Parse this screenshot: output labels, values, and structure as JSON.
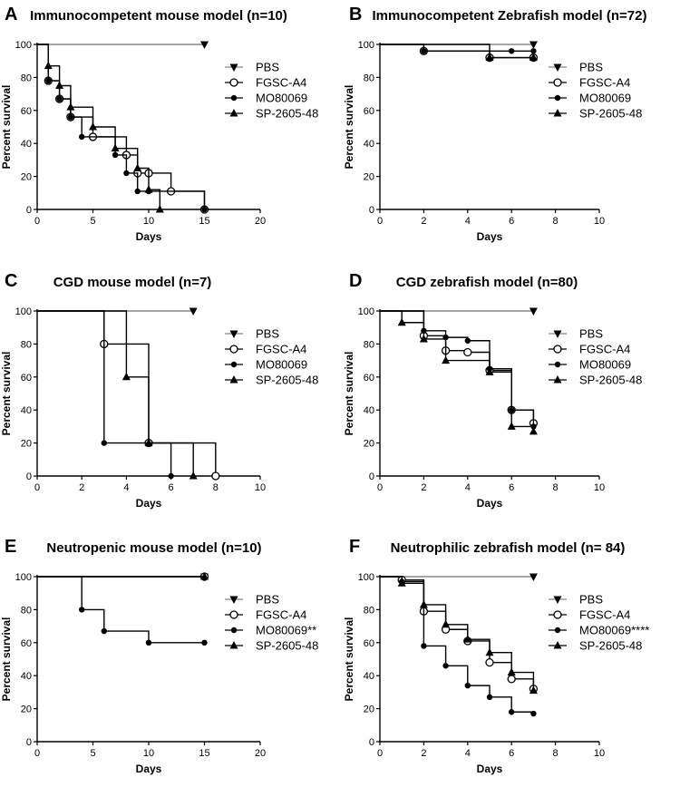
{
  "chart_data": [
    {
      "type": "line",
      "panel": "A",
      "title": "Immunocompetent mouse model (n=10)",
      "xlabel": "Days",
      "ylabel": "Percent survival",
      "xlim": [
        0,
        20
      ],
      "ylim": [
        0,
        100
      ],
      "xticks": [
        0,
        5,
        10,
        15,
        20
      ],
      "yticks": [
        0,
        20,
        40,
        60,
        80,
        100
      ],
      "legend": [
        "PBS",
        "FGSC-A4",
        "MO80069",
        "SP-2605-48"
      ],
      "series": [
        {
          "name": "PBS",
          "marker": "tri-down",
          "color": "#888888",
          "x": [
            0,
            15
          ],
          "y": [
            100,
            100
          ]
        },
        {
          "name": "FGSC-A4",
          "marker": "circle-open",
          "color": "#000000",
          "x": [
            0,
            1,
            2,
            3,
            5,
            8,
            9,
            10,
            12,
            15
          ],
          "y": [
            100,
            78,
            67,
            56,
            44,
            33,
            22,
            22,
            11,
            0
          ]
        },
        {
          "name": "MO80069",
          "marker": "circle",
          "color": "#000000",
          "x": [
            0,
            1,
            2,
            3,
            4,
            7,
            8,
            9,
            10,
            15
          ],
          "y": [
            100,
            78,
            67,
            56,
            44,
            33,
            22,
            11,
            11,
            0
          ]
        },
        {
          "name": "SP-2605-48",
          "marker": "tri-up",
          "color": "#000000",
          "x": [
            0,
            1,
            2,
            3,
            5,
            7,
            9,
            10,
            11
          ],
          "y": [
            100,
            87,
            75,
            62,
            50,
            37,
            25,
            12,
            0
          ]
        }
      ]
    },
    {
      "type": "line",
      "panel": "B",
      "title": "Immunocompetent Zebrafish model (n=72)",
      "xlabel": "Days",
      "ylabel": "Percent survival",
      "xlim": [
        0,
        10
      ],
      "ylim": [
        0,
        100
      ],
      "xticks": [
        0,
        2,
        4,
        6,
        8,
        10
      ],
      "yticks": [
        0,
        20,
        40,
        60,
        80,
        100
      ],
      "legend": [
        "PBS",
        "FGSC-A4",
        "MO80069",
        "SP-2605-48"
      ],
      "series": [
        {
          "name": "PBS",
          "marker": "tri-down",
          "color": "#888888",
          "x": [
            0,
            7
          ],
          "y": [
            100,
            100
          ]
        },
        {
          "name": "FGSC-A4",
          "marker": "circle-open",
          "color": "#000000",
          "x": [
            0,
            2,
            5,
            7
          ],
          "y": [
            100,
            96,
            92,
            92
          ]
        },
        {
          "name": "MO80069",
          "marker": "circle",
          "color": "#000000",
          "x": [
            0,
            2,
            6,
            7
          ],
          "y": [
            100,
            96,
            96,
            96
          ]
        },
        {
          "name": "SP-2605-48",
          "marker": "tri-up",
          "color": "#000000",
          "x": [
            0,
            5,
            7
          ],
          "y": [
            100,
            92,
            92
          ]
        }
      ]
    },
    {
      "type": "line",
      "panel": "C",
      "title": "CGD mouse model (n=7)",
      "xlabel": "Days",
      "ylabel": "Percent survival",
      "xlim": [
        0,
        10
      ],
      "ylim": [
        0,
        100
      ],
      "xticks": [
        0,
        2,
        4,
        6,
        8,
        10
      ],
      "yticks": [
        0,
        20,
        40,
        60,
        80,
        100
      ],
      "legend": [
        "PBS",
        "FGSC-A4",
        "MO80069",
        "SP-2605-48"
      ],
      "series": [
        {
          "name": "PBS",
          "marker": "tri-down",
          "color": "#888888",
          "x": [
            0,
            7
          ],
          "y": [
            100,
            100
          ]
        },
        {
          "name": "FGSC-A4",
          "marker": "circle-open",
          "color": "#000000",
          "x": [
            0,
            3,
            5,
            8
          ],
          "y": [
            100,
            80,
            20,
            0
          ]
        },
        {
          "name": "MO80069",
          "marker": "circle",
          "color": "#000000",
          "x": [
            0,
            3,
            6
          ],
          "y": [
            100,
            20,
            0
          ]
        },
        {
          "name": "SP-2605-48",
          "marker": "tri-up",
          "color": "#000000",
          "x": [
            0,
            4,
            5,
            7
          ],
          "y": [
            100,
            60,
            20,
            0
          ]
        }
      ]
    },
    {
      "type": "line",
      "panel": "D",
      "title": "CGD zebrafish model (n=80)",
      "xlabel": "Days",
      "ylabel": "Percent survival",
      "xlim": [
        0,
        10
      ],
      "ylim": [
        0,
        100
      ],
      "xticks": [
        0,
        2,
        4,
        6,
        8,
        10
      ],
      "yticks": [
        0,
        20,
        40,
        60,
        80,
        100
      ],
      "legend": [
        "PBS",
        "FGSC-A4",
        "MO80069",
        "SP-2605-48"
      ],
      "series": [
        {
          "name": "PBS",
          "marker": "tri-down",
          "color": "#888888",
          "x": [
            0,
            7
          ],
          "y": [
            100,
            100
          ]
        },
        {
          "name": "FGSC-A4",
          "marker": "circle-open",
          "color": "#000000",
          "x": [
            0,
            2,
            3,
            4,
            5,
            6,
            7
          ],
          "y": [
            100,
            85,
            76,
            75,
            64,
            40,
            32
          ]
        },
        {
          "name": "MO80069",
          "marker": "circle",
          "color": "#000000",
          "x": [
            0,
            2,
            3,
            4,
            5,
            6,
            7
          ],
          "y": [
            100,
            88,
            84,
            82,
            65,
            40,
            30
          ]
        },
        {
          "name": "SP-2605-48",
          "marker": "tri-up",
          "color": "#000000",
          "x": [
            0,
            1,
            2,
            3,
            5,
            6,
            7
          ],
          "y": [
            100,
            93,
            83,
            70,
            63,
            30,
            27
          ]
        }
      ]
    },
    {
      "type": "line",
      "panel": "E",
      "title": "Neutropenic mouse model (n=10)",
      "xlabel": "Days",
      "ylabel": "Percent survival",
      "xlim": [
        0,
        20
      ],
      "ylim": [
        0,
        100
      ],
      "xticks": [
        0,
        5,
        10,
        15,
        20
      ],
      "yticks": [
        0,
        20,
        40,
        60,
        80,
        100
      ],
      "legend": [
        "PBS",
        "FGSC-A4",
        "MO80069**",
        "SP-2605-48"
      ],
      "series": [
        {
          "name": "PBS",
          "marker": "tri-down",
          "color": "#888888",
          "x": [
            0,
            15
          ],
          "y": [
            100,
            100
          ]
        },
        {
          "name": "FGSC-A4",
          "marker": "circle-open",
          "color": "#000000",
          "x": [
            0,
            15
          ],
          "y": [
            100,
            100
          ]
        },
        {
          "name": "MO80069**",
          "marker": "circle",
          "color": "#000000",
          "x": [
            0,
            4,
            6,
            10,
            15
          ],
          "y": [
            100,
            80,
            67,
            60,
            60
          ]
        },
        {
          "name": "SP-2605-48",
          "marker": "tri-up",
          "color": "#000000",
          "x": [
            0,
            15
          ],
          "y": [
            100,
            100
          ]
        }
      ]
    },
    {
      "type": "line",
      "panel": "F",
      "title": "Neutrophilic zebrafish model (n= 84)",
      "xlabel": "Days",
      "ylabel": "Percent survival",
      "xlim": [
        0,
        10
      ],
      "ylim": [
        0,
        100
      ],
      "xticks": [
        0,
        2,
        4,
        6,
        8,
        10
      ],
      "yticks": [
        0,
        20,
        40,
        60,
        80,
        100
      ],
      "legend": [
        "PBS",
        "FGSC-A4",
        "MO80069****",
        "SP-2605-48"
      ],
      "series": [
        {
          "name": "PBS",
          "marker": "tri-down",
          "color": "#888888",
          "x": [
            0,
            7
          ],
          "y": [
            100,
            100
          ]
        },
        {
          "name": "FGSC-A4",
          "marker": "circle-open",
          "color": "#000000",
          "x": [
            0,
            1,
            2,
            3,
            4,
            5,
            6,
            7
          ],
          "y": [
            100,
            98,
            79,
            68,
            61,
            48,
            38,
            32
          ]
        },
        {
          "name": "MO80069****",
          "marker": "circle",
          "color": "#000000",
          "x": [
            0,
            1,
            2,
            3,
            4,
            5,
            6,
            7
          ],
          "y": [
            100,
            97,
            58,
            46,
            34,
            27,
            18,
            17
          ]
        },
        {
          "name": "SP-2605-48",
          "marker": "tri-up",
          "color": "#000000",
          "x": [
            0,
            1,
            2,
            3,
            4,
            5,
            6,
            7
          ],
          "y": [
            100,
            96,
            83,
            71,
            62,
            54,
            42,
            31
          ]
        }
      ]
    }
  ]
}
